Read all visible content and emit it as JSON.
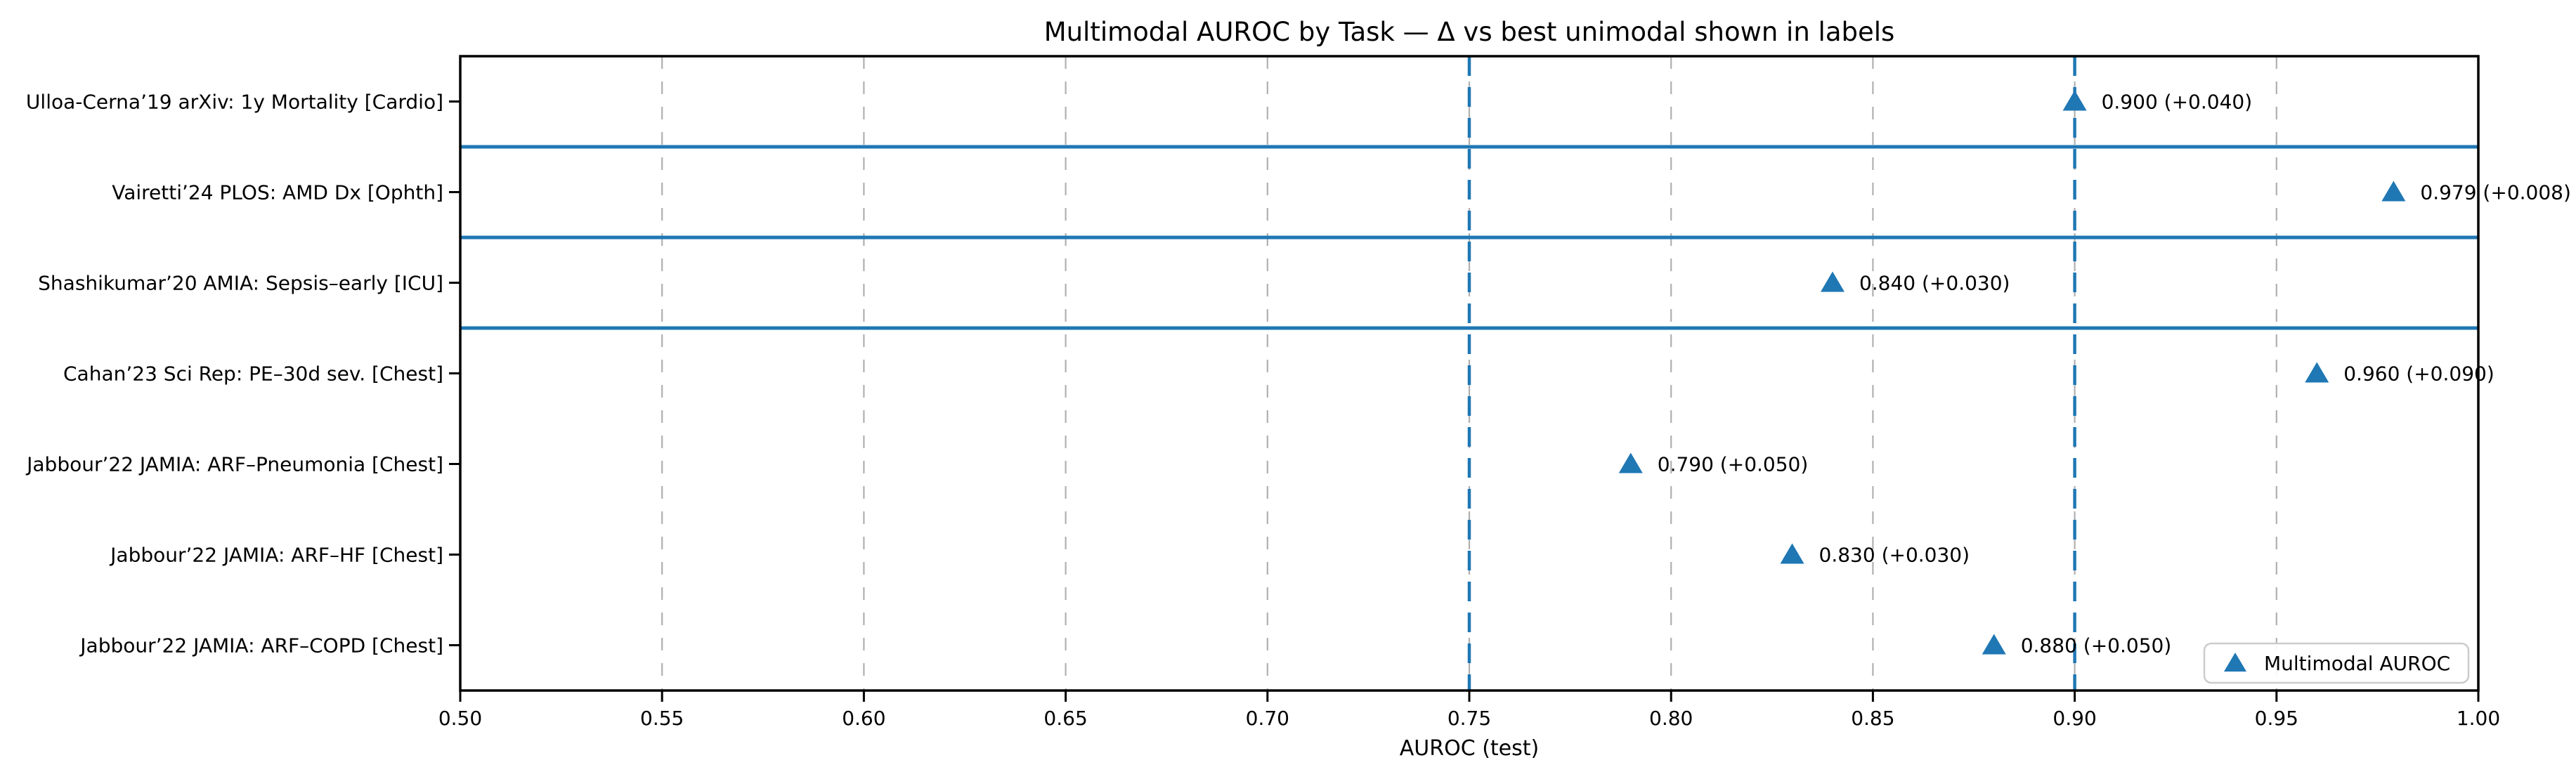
{
  "title": "Multimodal AUROC by Task — Δ vs best unimodal shown in labels",
  "xlabel": "AUROC (test)",
  "legend": {
    "label": "Multimodal AUROC",
    "position": "lower right"
  },
  "colors": {
    "accent_blue": "#1f77b4",
    "grid_gray": "#b0b0b0",
    "legend_border_gray": "#cccccc",
    "axis_black": "#000000"
  },
  "chart_data": {
    "type": "scatter",
    "orientation": "horizontal",
    "title": "Multimodal AUROC by Task — Δ vs best unimodal shown in labels",
    "xlabel": "AUROC (test)",
    "ylabel": "",
    "xlim": [
      0.5,
      1.0
    ],
    "grid": "vertical dashed gray at every x tick",
    "xticks": [
      0.5,
      0.55,
      0.6,
      0.65,
      0.7,
      0.75,
      0.8,
      0.85,
      0.9,
      0.95,
      1.0
    ],
    "xtick_labels": [
      "0.50",
      "0.55",
      "0.60",
      "0.65",
      "0.70",
      "0.75",
      "0.80",
      "0.85",
      "0.90",
      "0.95",
      "1.00"
    ],
    "categories": [
      "Ulloa-Cerna’19 arXiv: 1y Mortality [Cardio]",
      "Vairetti’24 PLOS: AMD Dx [Ophth]",
      "Shashikumar’20 AMIA: Sepsis–early [ICU]",
      "Cahan’23 Sci Rep: PE–30d sev. [Chest]",
      "Jabbour’22 JAMIA: ARF–Pneumonia [Chest]",
      "Jabbour’22 JAMIA: ARF–HF [Chest]",
      "Jabbour’22 JAMIA: ARF–COPD [Chest]"
    ],
    "series": [
      {
        "name": "Multimodal AUROC",
        "marker": "triangle-up",
        "color": "#1f77b4",
        "values": [
          0.9,
          0.979,
          0.84,
          0.96,
          0.79,
          0.83,
          0.88
        ]
      }
    ],
    "delta_vs_best_unimodal": [
      0.04,
      0.008,
      0.03,
      0.09,
      0.05,
      0.03,
      0.05
    ],
    "point_labels": [
      "0.900 (+0.040)",
      "0.979 (+0.008)",
      "0.840 (+0.030)",
      "0.960 (+0.090)",
      "0.790 (+0.050)",
      "0.830 (+0.030)",
      "0.880 (+0.050)"
    ],
    "reference_lines_x": [
      0.75,
      0.9
    ],
    "group_separators_after_rows": [
      0,
      1,
      2
    ],
    "legend_position": "lower right"
  }
}
